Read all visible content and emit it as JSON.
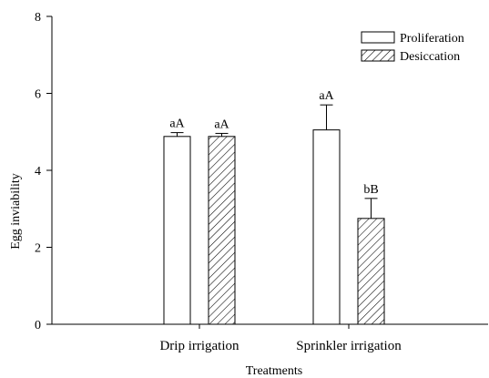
{
  "chart_data": {
    "type": "bar",
    "title": "",
    "xlabel": "Treatments",
    "ylabel": "Egg inviability",
    "ylim": [
      0,
      8
    ],
    "yticks": [
      0,
      2,
      4,
      6,
      8
    ],
    "categories": [
      "Drip irrigation",
      "Sprinkler irrigation"
    ],
    "series": [
      {
        "name": "Proliferation",
        "values": [
          4.88,
          5.05
        ],
        "errors": [
          0.1,
          0.65
        ],
        "labels": [
          "aA",
          "aA"
        ],
        "fill": "#ffffff",
        "pattern": "none"
      },
      {
        "name": "Desiccation",
        "values": [
          4.88,
          2.75
        ],
        "errors": [
          0.08,
          0.52
        ],
        "labels": [
          "aA",
          "bB"
        ],
        "fill": "#ffffff",
        "pattern": "diagonal-hatch"
      }
    ],
    "legend_position": "top-right",
    "grid": false,
    "colors": {
      "stroke": "#000000",
      "background": "#ffffff"
    }
  }
}
